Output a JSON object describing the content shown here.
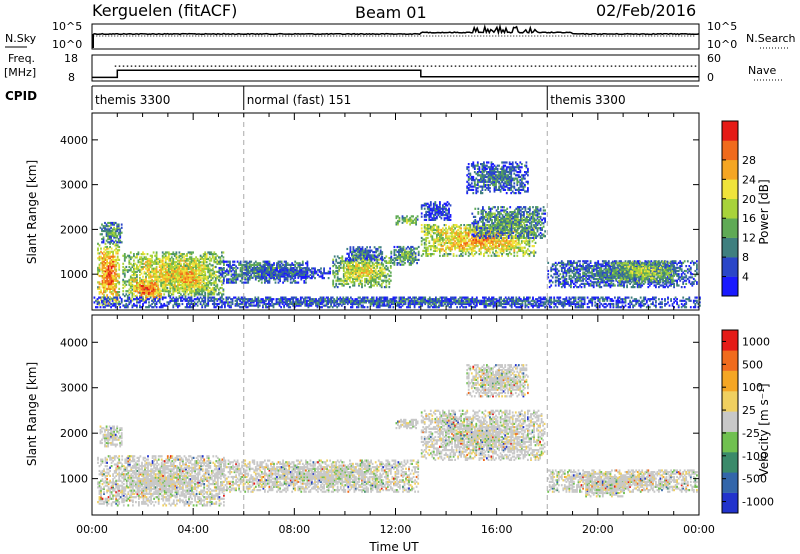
{
  "header": {
    "station": "Kerguelen (fitACF)",
    "beam": "Beam 01",
    "date": "02/Feb/2016"
  },
  "noise_panel": {
    "left_label": "N.Sky",
    "left_ticks": [
      "10^5",
      "10^0"
    ],
    "right_label": "N.Search",
    "right_ticks": [
      "10^5",
      "10^0"
    ]
  },
  "freq_panel": {
    "left_label_line1": "Freq.",
    "left_label_line2": "[MHz]",
    "left_ticks": [
      "18",
      "8"
    ],
    "right_label": "Nave",
    "right_ticks": [
      "60",
      "0"
    ],
    "freq_steps": [
      {
        "t_start": 0.0,
        "t_end": 1.0,
        "mhz": 9.5
      },
      {
        "t_start": 1.0,
        "t_end": 13.0,
        "mhz": 12.5
      },
      {
        "t_start": 13.0,
        "t_end": 24.0,
        "mhz": 9.8
      }
    ],
    "nave_level": 0.62
  },
  "cpid": {
    "label": "CPID",
    "segments": [
      {
        "t_start": 0.0,
        "name": "themis 3300"
      },
      {
        "t_start": 6.0,
        "name": "normal (fast) 151"
      },
      {
        "t_start": 18.0,
        "name": "themis 3300"
      }
    ]
  },
  "chart_data": [
    {
      "type": "heatmap",
      "name": "power",
      "ylabel": "Slant Range [km]",
      "yticks": [
        1000,
        2000,
        3000,
        4000
      ],
      "ylim": [
        200,
        4600
      ],
      "xlim": [
        0,
        24
      ],
      "colorbar": {
        "label": "Power [dB]",
        "ticks": [
          "4",
          "8",
          "12",
          "16",
          "20",
          "24",
          "28"
        ],
        "colors": [
          "#1a1aff",
          "#2a46c8",
          "#3f7f7f",
          "#5faa55",
          "#a8d33a",
          "#f0e43a",
          "#f5a623",
          "#f06b1c",
          "#e51b17"
        ]
      },
      "regions": [
        {
          "t0": 0.2,
          "t1": 1.1,
          "r0": 300,
          "r1": 1700,
          "level": 0.9
        },
        {
          "t0": 0.3,
          "t1": 1.2,
          "r0": 1700,
          "r1": 2150,
          "level": 0.4
        },
        {
          "t0": 1.2,
          "t1": 5.2,
          "r0": 500,
          "r1": 1500,
          "level": 0.7
        },
        {
          "t0": 1.5,
          "t1": 2.8,
          "r0": 400,
          "r1": 900,
          "level": 0.95
        },
        {
          "t0": 3.0,
          "t1": 4.6,
          "r0": 600,
          "r1": 1200,
          "level": 0.8
        },
        {
          "t0": 5.0,
          "t1": 8.5,
          "r0": 800,
          "r1": 1300,
          "level": 0.35
        },
        {
          "t0": 6.5,
          "t1": 9.5,
          "r0": 900,
          "r1": 1150,
          "level": 0.2
        },
        {
          "t0": 9.5,
          "t1": 11.8,
          "r0": 700,
          "r1": 1400,
          "level": 0.65
        },
        {
          "t0": 10.0,
          "t1": 11.5,
          "r0": 1300,
          "r1": 1600,
          "level": 0.3
        },
        {
          "t0": 11.8,
          "t1": 12.9,
          "r0": 1200,
          "r1": 1600,
          "level": 0.45
        },
        {
          "t0": 12.0,
          "t1": 12.9,
          "r0": 2100,
          "r1": 2300,
          "level": 0.55
        },
        {
          "t0": 13.0,
          "t1": 17.5,
          "r0": 1400,
          "r1": 2100,
          "level": 0.8
        },
        {
          "t0": 15.0,
          "t1": 17.9,
          "r0": 1800,
          "r1": 2500,
          "level": 0.4
        },
        {
          "t0": 14.8,
          "t1": 17.2,
          "r0": 2800,
          "r1": 3500,
          "level": 0.3
        },
        {
          "t0": 13.0,
          "t1": 14.2,
          "r0": 2200,
          "r1": 2600,
          "level": 0.2
        },
        {
          "t0": 18.0,
          "t1": 23.9,
          "r0": 700,
          "r1": 1300,
          "level": 0.3
        },
        {
          "t0": 20.5,
          "t1": 23.0,
          "r0": 800,
          "r1": 1300,
          "level": 0.55
        },
        {
          "t0": 0.0,
          "t1": 24.0,
          "r0": 250,
          "r1": 500,
          "level": 0.25
        }
      ]
    },
    {
      "type": "heatmap",
      "name": "velocity",
      "ylabel": "Slant Range [km]",
      "yticks": [
        1000,
        2000,
        3000,
        4000
      ],
      "ylim": [
        200,
        4600
      ],
      "xlim": [
        0,
        24
      ],
      "xticks": [
        "00:00",
        "04:00",
        "08:00",
        "12:00",
        "16:00",
        "20:00",
        "00:00"
      ],
      "xlabel": "Time UT",
      "colorbar": {
        "label": "Velocity [m s⁻¹]",
        "ticks": [
          "1000",
          "500",
          "100",
          "25",
          "-25",
          "-100",
          "-500",
          "-1000"
        ],
        "colors": [
          "#2233cc",
          "#3366aa",
          "#3a8a6a",
          "#70c050",
          "#c8c8c8",
          "#f0d060",
          "#f5a623",
          "#f06b1c",
          "#e51b17"
        ]
      },
      "regions": [
        {
          "t0": 0.2,
          "t1": 5.2,
          "r0": 400,
          "r1": 1500,
          "level": 0.5
        },
        {
          "t0": 5.0,
          "t1": 12.9,
          "r0": 700,
          "r1": 1400,
          "level": 0.5
        },
        {
          "t0": 12.0,
          "t1": 12.9,
          "r0": 2100,
          "r1": 2300,
          "level": 0.5
        },
        {
          "t0": 13.0,
          "t1": 17.9,
          "r0": 1400,
          "r1": 2500,
          "level": 0.5
        },
        {
          "t0": 14.8,
          "t1": 17.2,
          "r0": 2800,
          "r1": 3500,
          "level": 0.6
        },
        {
          "t0": 18.0,
          "t1": 23.9,
          "r0": 700,
          "r1": 1200,
          "level": 0.5
        },
        {
          "t0": 19.5,
          "t1": 21.0,
          "r0": 600,
          "r1": 1000,
          "level": 0.25
        },
        {
          "t0": 0.3,
          "t1": 1.2,
          "r0": 1700,
          "r1": 2150,
          "level": 0.35
        }
      ]
    }
  ]
}
